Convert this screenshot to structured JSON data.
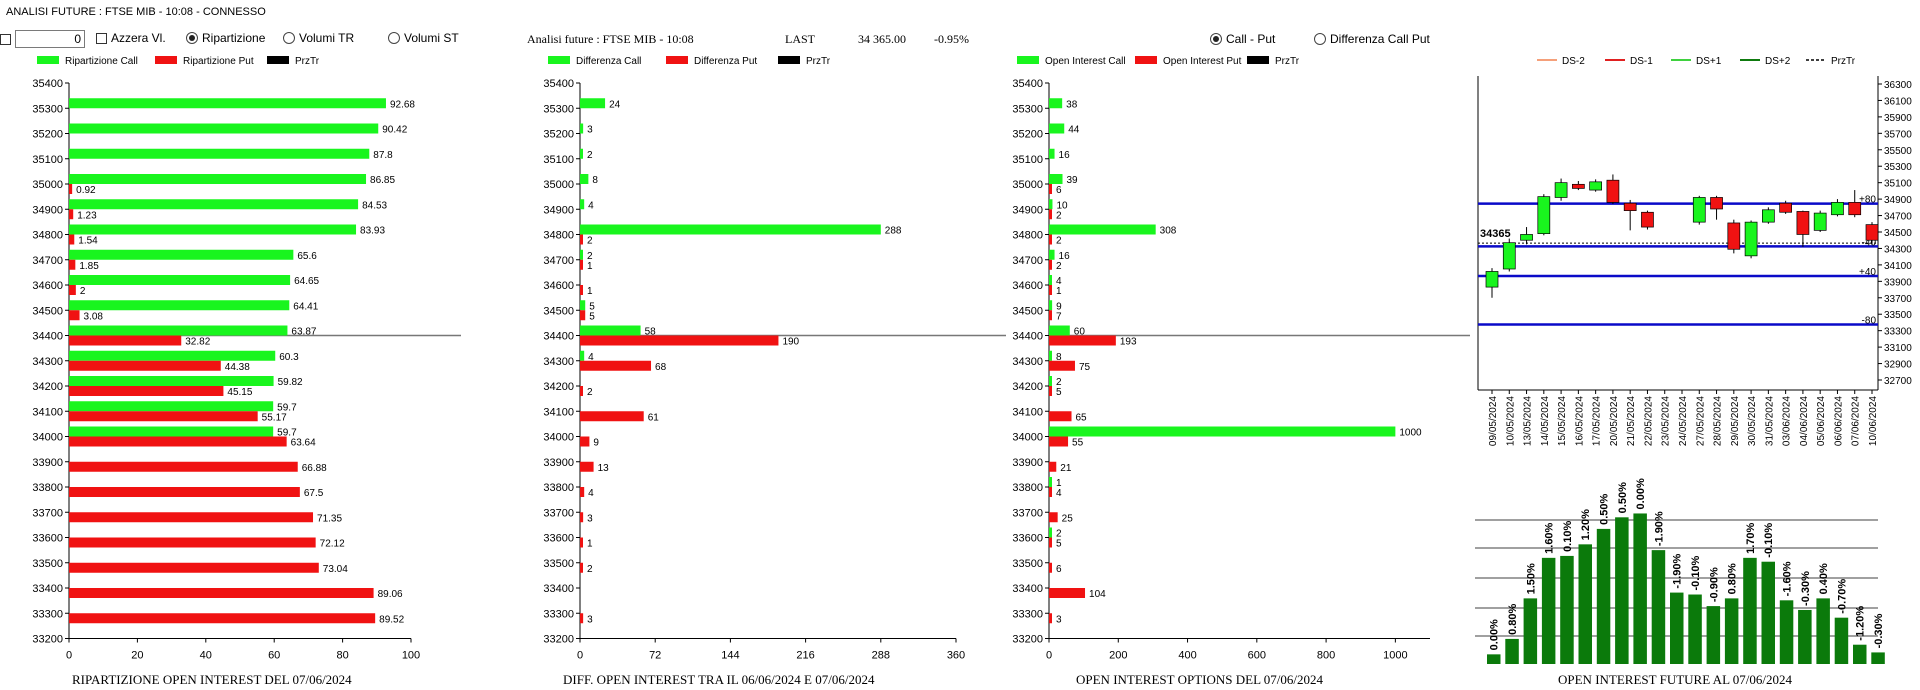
{
  "window": {
    "title": "ANALISI FUTURE : FTSE MIB - 10:08 - CONNESSO"
  },
  "controls": {
    "number_value": "0",
    "azzera_label": "Azzera Vl.",
    "radio_ripartizione": "Ripartizione",
    "radio_volumi_tr": "Volumi TR",
    "radio_volumi_st": "Volumi ST",
    "selected": "Ripartizione"
  },
  "header": {
    "analisi": "Analisi future : FTSE MIB - 10:08",
    "last_label": "LAST",
    "last_value": "34 365.00",
    "change": "-0.95%",
    "radio_call_put": "Call - Put",
    "radio_diff_call_put": "Differenza Call Put",
    "selected_mode": "Call - Put"
  },
  "colors": {
    "green": "#19f51e",
    "red": "#f01212",
    "black": "#000000",
    "navy": "#0a0ac8",
    "dark_green": "#0b7a0b"
  },
  "strikes": [
    35400,
    35300,
    35200,
    35100,
    35000,
    34900,
    34800,
    34700,
    34600,
    34500,
    34400,
    34300,
    34200,
    34100,
    34000,
    33900,
    33800,
    33700,
    33600,
    33500,
    33400,
    33300,
    33200
  ],
  "chart_data": [
    {
      "type": "bar",
      "title": "RIPARTIZIONE OPEN INTEREST DEL 07/06/2024",
      "legend": [
        "Ripartizione Call",
        "Ripartizione Put",
        "PrzTr"
      ],
      "x_ticks": [
        "0",
        "20",
        "40",
        "60",
        "80",
        "100"
      ],
      "xlim": [
        0,
        100
      ],
      "price_line": 34400,
      "call": {
        "35300": 92.68,
        "35200": 90.42,
        "35100": 87.8,
        "35000": 86.85,
        "34900": 84.53,
        "34800": 83.93,
        "34700": 65.6,
        "34600": 64.65,
        "34500": 64.41,
        "34400": 63.87,
        "34300": 60.3,
        "34200": 59.82,
        "34100": 59.7,
        "34000": 59.7
      },
      "put": {
        "35000": 0.92,
        "34900": 1.23,
        "34800": 1.54,
        "34700": 1.85,
        "34600": 2,
        "34500": 3.08,
        "34400": 32.82,
        "34300": 44.38,
        "34200": 45.15,
        "34100": 55.17,
        "34000": 63.64,
        "33900": 66.88,
        "33800": 67.5,
        "33700": 71.35,
        "33600": 72.12,
        "33500": 73.04,
        "33400": 89.06,
        "33300": 89.52
      }
    },
    {
      "type": "bar",
      "title": "DIFF. OPEN INTEREST TRA IL 06/06/2024 E 07/06/2024",
      "legend": [
        "Differenza Call",
        "Differenza Put",
        "PrzTr"
      ],
      "x_ticks": [
        "0",
        "72",
        "144",
        "216",
        "288",
        "360"
      ],
      "xlim": [
        0,
        360
      ],
      "price_line": 34400,
      "call": {
        "35300": 24,
        "35200": 3,
        "35100": 2,
        "35000": 8,
        "34900": 4,
        "34800": 288,
        "34700": 2,
        "34500": 5,
        "34400": 58,
        "34300": 4
      },
      "put": {
        "34800": 2,
        "34700": 1,
        "34600": 1,
        "34500": 5,
        "34400": 190,
        "34300": 68,
        "34200": 2,
        "34100": 61,
        "34000": 9,
        "33900": 13,
        "33800": 4,
        "33700": 3,
        "33600": 1,
        "33500": 2,
        "33300": 3
      }
    },
    {
      "type": "bar",
      "title": "OPEN INTEREST OPTIONS DEL 07/06/2024",
      "legend": [
        "Open Interest Call",
        "Open Interest Put",
        "PrzTr"
      ],
      "x_ticks": [
        "0",
        "200",
        "400",
        "600",
        "800",
        "1000"
      ],
      "xlim": [
        0,
        1100
      ],
      "price_line": 34400,
      "call": {
        "35300": 38,
        "35200": 44,
        "35100": 16,
        "35000": 39,
        "34900": 10,
        "34800": 308,
        "34700": 16,
        "34600": 4,
        "34500": 9,
        "34400": 60,
        "34300": 8,
        "34200": 2,
        "34000": 1000,
        "33800": 1,
        "33600": 2
      },
      "put": {
        "35000": 6,
        "34900": 2,
        "34800": 2,
        "34700": 2,
        "34600": 1,
        "34500": 7,
        "34400": 193,
        "34300": 75,
        "34200": 5,
        "34100": 65,
        "34000": 55,
        "33900": 21,
        "33800": 4,
        "33700": 25,
        "33600": 5,
        "33500": 6,
        "33400": 104,
        "33300": 3
      }
    },
    {
      "type": "candlestick",
      "legend": [
        "DS-2",
        "DS-1",
        "DS+1",
        "DS+2",
        "PrzTr"
      ],
      "y_ticks": [
        "36300",
        "36100",
        "35900",
        "35700",
        "35500",
        "35300",
        "35100",
        "34900",
        "34700",
        "34500",
        "34300",
        "34100",
        "33900",
        "33700",
        "33500",
        "33300",
        "33100",
        "32900",
        "32700"
      ],
      "ylim": [
        32700,
        36300
      ],
      "last_label": "34365",
      "last_value": 34365,
      "levels": [
        {
          "label": "+80",
          "value": 34845
        },
        {
          "label": "-40",
          "value": 34325
        },
        {
          "label": "+40",
          "value": 33965
        },
        {
          "label": "-80",
          "value": 33375
        }
      ],
      "dates": [
        "09/05/2024",
        "10/05/2024",
        "13/05/2024",
        "14/05/2024",
        "15/05/2024",
        "16/05/2024",
        "17/05/2024",
        "20/05/2024",
        "21/05/2024",
        "22/05/2024",
        "23/05/2024",
        "24/05/2024",
        "27/05/2024",
        "28/05/2024",
        "29/05/2024",
        "30/05/2024",
        "31/05/2024",
        "03/06/2024",
        "04/06/2024",
        "05/06/2024",
        "06/06/2024",
        "07/06/2024",
        "10/06/2024"
      ],
      "candles": [
        {
          "o": 33830,
          "c": 34020,
          "h": 34060,
          "l": 33700
        },
        {
          "o": 34050,
          "c": 34370,
          "h": 34420,
          "l": 34020
        },
        {
          "o": 34400,
          "c": 34470,
          "h": 34560,
          "l": 34350
        },
        {
          "o": 34480,
          "c": 34930,
          "h": 34960,
          "l": 34460
        },
        {
          "o": 34920,
          "c": 35100,
          "h": 35150,
          "l": 34880
        },
        {
          "o": 35080,
          "c": 35030,
          "h": 35120,
          "l": 35010
        },
        {
          "o": 35010,
          "c": 35110,
          "h": 35140,
          "l": 34990
        },
        {
          "o": 35130,
          "c": 34860,
          "h": 35200,
          "l": 34840
        },
        {
          "o": 34850,
          "c": 34760,
          "h": 34890,
          "l": 34520
        },
        {
          "o": 34740,
          "c": 34560,
          "h": 34760,
          "l": 34530
        },
        {
          "o": null,
          "c": null,
          "h": null,
          "l": null
        },
        {
          "o": null,
          "c": null,
          "h": null,
          "l": null
        },
        {
          "o": 34620,
          "c": 34920,
          "h": 34940,
          "l": 34590
        },
        {
          "o": 34920,
          "c": 34780,
          "h": 34940,
          "l": 34650
        },
        {
          "o": 34610,
          "c": 34290,
          "h": 34650,
          "l": 34240
        },
        {
          "o": 34210,
          "c": 34620,
          "h": 34640,
          "l": 34180
        },
        {
          "o": 34620,
          "c": 34770,
          "h": 34800,
          "l": 34600
        },
        {
          "o": 34850,
          "c": 34740,
          "h": 34880,
          "l": 34720
        },
        {
          "o": 34750,
          "c": 34470,
          "h": 34760,
          "l": 34320
        },
        {
          "o": 34520,
          "c": 34730,
          "h": 34760,
          "l": 34500
        },
        {
          "o": 34710,
          "c": 34860,
          "h": 34900,
          "l": 34690
        },
        {
          "o": 34860,
          "c": 34710,
          "h": 35010,
          "l": 34680
        },
        {
          "o": 34590,
          "c": 34400,
          "h": 34620,
          "l": 34350
        }
      ]
    },
    {
      "type": "bar",
      "title": "OPEN INTEREST FUTURE AL 07/06/2024",
      "labels": [
        "0.00%",
        "0.80%",
        "1.50%",
        "1.60%",
        "0.10%",
        "1.20%",
        "0.50%",
        "0.50%",
        "0.00%",
        "-1.90%",
        "-1.90%",
        "-0.10%",
        "-0.90%",
        "0.80%",
        "1.70%",
        "-0.10%",
        "-1.60%",
        "-0.30%",
        "0.40%",
        "-0.70%",
        "-1.20%",
        "-0.30%"
      ],
      "values": [
        5,
        13,
        34,
        55,
        56,
        62,
        70,
        76,
        78,
        59,
        37,
        36,
        30,
        34,
        55,
        53,
        33,
        28,
        34,
        24,
        10,
        6
      ]
    }
  ],
  "footers": {
    "f1": "RIPARTIZIONE OPEN INTEREST DEL 07/06/2024",
    "f2": "DIFF. OPEN INTEREST TRA IL 06/06/2024 E 07/06/2024",
    "f3": "OPEN INTEREST OPTIONS DEL 07/06/2024",
    "f4": "OPEN INTEREST FUTURE AL 07/06/2024"
  }
}
